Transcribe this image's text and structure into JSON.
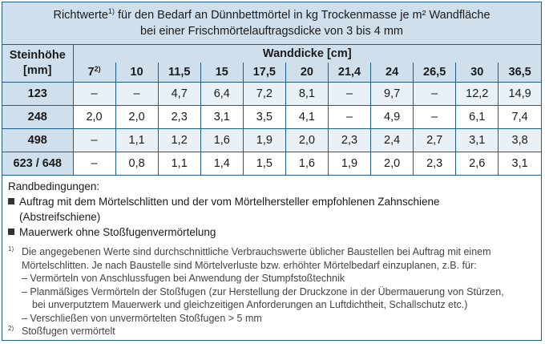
{
  "title": {
    "line1_pre": "Richtwerte",
    "line1_sup": "1)",
    "line1_post": " für den Bedarf an Dünnbettmörtel in kg Trockenmasse je m² Wandfläche",
    "line2": "bei einer Frischmörtelauftragsdicke von 3 bis 4 mm"
  },
  "table": {
    "row_header_line1": "Steinhöhe",
    "row_header_line2": "[mm]",
    "column_group_label": "Wanddicke [cm]",
    "columns": [
      {
        "label": "7",
        "sup": "2)"
      },
      {
        "label": "10",
        "sup": ""
      },
      {
        "label": "11,5",
        "sup": ""
      },
      {
        "label": "15",
        "sup": ""
      },
      {
        "label": "17,5",
        "sup": ""
      },
      {
        "label": "20",
        "sup": ""
      },
      {
        "label": "21,4",
        "sup": ""
      },
      {
        "label": "24",
        "sup": ""
      },
      {
        "label": "26,5",
        "sup": ""
      },
      {
        "label": "30",
        "sup": ""
      },
      {
        "label": "36,5",
        "sup": ""
      }
    ],
    "rows": [
      {
        "height": "123",
        "values": [
          "–",
          "–",
          "4,7",
          "6,4",
          "7,2",
          "8,1",
          "–",
          "9,7",
          "–",
          "12,2",
          "14,9"
        ]
      },
      {
        "height": "248",
        "values": [
          "2,0",
          "2,0",
          "2,3",
          "3,1",
          "3,5",
          "4,1",
          "–",
          "4,9",
          "–",
          "6,1",
          "7,4"
        ]
      },
      {
        "height": "498",
        "values": [
          "–",
          "1,1",
          "1,2",
          "1,6",
          "1,9",
          "2,0",
          "2,3",
          "2,4",
          "2,7",
          "3,1",
          "3,8"
        ]
      },
      {
        "height": "623 / 648",
        "values": [
          "–",
          "0,8",
          "1,1",
          "1,4",
          "1,5",
          "1,6",
          "1,9",
          "2,0",
          "2,3",
          "2,6",
          "3,1"
        ]
      }
    ]
  },
  "conditions": {
    "heading": "Randbedingungen:",
    "bullet1_line1": "Auftrag mit dem Mörtelschlitten und der vom Mörtelhersteller empfohlenen Zahnschiene",
    "bullet1_line2": "(Abstreifschiene)",
    "bullet2": "Mauerwerk ohne Stoßfugenvermörtelung"
  },
  "footnotes": {
    "fn1_mark": "1)",
    "fn1_line1": "Die angegebenen Werte sind durchschnittliche Verbrauchswerte üblicher Baustellen bei Auftrag mit einem",
    "fn1_line2": "Mörtelschlitten. Je nach Baustelle sind Mörtelverluste bzw. erhöhter Mörtelbedarf einzuplanen, z.B. für:",
    "dash1": "–  Vermörteln von Anschlussfugen bei Anwendung der Stumpfstoßtechnik",
    "dash2_line1": "–  Planmäßiges Vermörteln der Stoßfugen (zur Herstellung der Druckzone in der Übermauerung von Stürzen,",
    "dash2_line2": "bei unverputztem Mauerwerk und gleichzeitigen Anforderungen an Luftdichtheit, Schallschutz etc.)",
    "dash3": "–  Verschließen von unvermörtelten Stoßfugen > 5 mm",
    "fn2_mark": "2)",
    "fn2_text": "Stoßfugen vermörtelt"
  }
}
